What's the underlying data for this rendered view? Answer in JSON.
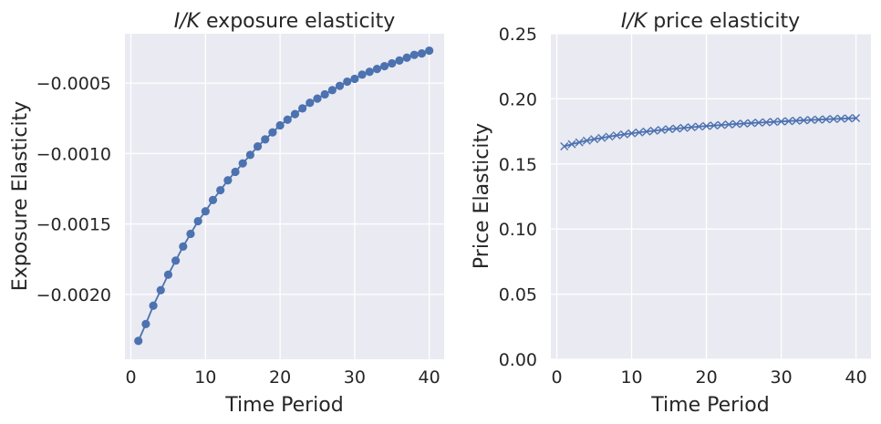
{
  "chart_data": [
    {
      "type": "line",
      "title_italic": "I/K",
      "title_rest": " exposure elasticity",
      "xlabel": "Time Period",
      "ylabel": "Exposure Elasticity",
      "xlim": [
        -0.8,
        42.0
      ],
      "ylim": [
        -0.00246,
        -0.00015
      ],
      "xticks": [
        0,
        10,
        20,
        30,
        40
      ],
      "xtick_labels": [
        "0",
        "10",
        "20",
        "30",
        "40"
      ],
      "yticks": [
        -0.002,
        -0.0015,
        -0.001,
        -0.0005
      ],
      "ytick_labels": [
        "−0.0020",
        "−0.0015",
        "−0.0010",
        "−0.0005"
      ],
      "grid": true,
      "marker": "circle",
      "color": "#4c72b0",
      "background": "#eaeaf2",
      "series": [
        {
          "x": [
            1,
            2,
            3,
            4,
            5,
            6,
            7,
            8,
            9,
            10,
            11,
            12,
            13,
            14,
            15,
            16,
            17,
            18,
            19,
            20,
            21,
            22,
            23,
            24,
            25,
            26,
            27,
            28,
            29,
            30,
            31,
            32,
            33,
            34,
            35,
            36,
            37,
            38,
            39,
            40
          ],
          "y": [
            -0.00233,
            -0.00221,
            -0.00208,
            -0.00197,
            -0.00186,
            -0.00176,
            -0.00166,
            -0.00157,
            -0.00148,
            -0.00141,
            -0.00133,
            -0.00126,
            -0.00119,
            -0.00113,
            -0.00107,
            -0.00101,
            -0.00095,
            -0.0009,
            -0.00085,
            -0.0008,
            -0.00076,
            -0.00072,
            -0.00068,
            -0.00064,
            -0.00061,
            -0.00058,
            -0.00055,
            -0.00052,
            -0.00049,
            -0.00047,
            -0.00044,
            -0.00042,
            -0.0004,
            -0.00038,
            -0.00036,
            -0.00034,
            -0.00032,
            -0.0003,
            -0.00029,
            -0.00027
          ]
        }
      ]
    },
    {
      "type": "line",
      "title_italic": "I/K",
      "title_rest": " price elasticity",
      "xlabel": "Time Period",
      "ylabel": "Price Elasticity",
      "xlim": [
        -0.8,
        42.0
      ],
      "ylim": [
        0,
        0.25
      ],
      "xticks": [
        0,
        10,
        20,
        30,
        40
      ],
      "xtick_labels": [
        "0",
        "10",
        "20",
        "30",
        "40"
      ],
      "yticks": [
        0,
        0.05,
        0.1,
        0.15,
        0.2,
        0.25
      ],
      "ytick_labels": [
        "0.00",
        "0.05",
        "0.10",
        "0.15",
        "0.20",
        "0.25"
      ],
      "grid": true,
      "marker": "x",
      "color": "#4c72b0",
      "background": "#eaeaf2",
      "series": [
        {
          "x": [
            1,
            2,
            3,
            4,
            5,
            6,
            7,
            8,
            9,
            10,
            11,
            12,
            13,
            14,
            15,
            16,
            17,
            18,
            19,
            20,
            21,
            22,
            23,
            24,
            25,
            26,
            27,
            28,
            29,
            30,
            31,
            32,
            33,
            34,
            35,
            36,
            37,
            38,
            39,
            40
          ],
          "y": [
            0.1635,
            0.1652,
            0.1666,
            0.1679,
            0.169,
            0.17,
            0.171,
            0.1719,
            0.1727,
            0.1735,
            0.1742,
            0.1749,
            0.1755,
            0.1761,
            0.1767,
            0.1772,
            0.1777,
            0.1782,
            0.1787,
            0.1791,
            0.1795,
            0.1799,
            0.1803,
            0.1807,
            0.181,
            0.1814,
            0.1817,
            0.182,
            0.1823,
            0.1826,
            0.1829,
            0.1832,
            0.1835,
            0.1838,
            0.184,
            0.1843,
            0.1845,
            0.1848,
            0.185,
            0.1852
          ]
        }
      ]
    }
  ]
}
